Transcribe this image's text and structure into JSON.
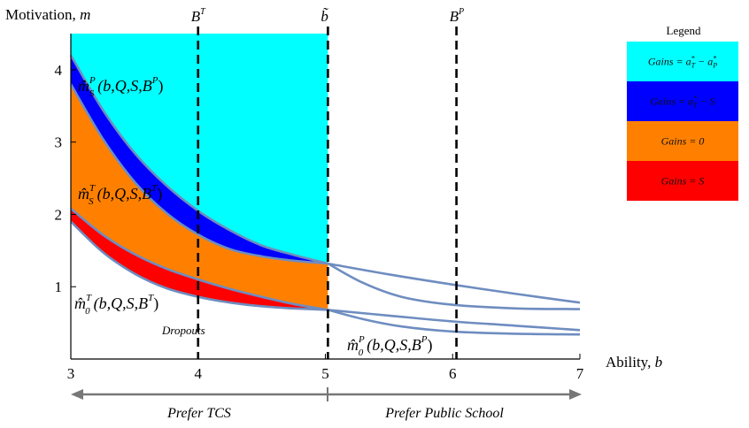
{
  "chart_data": {
    "type": "area",
    "title": "",
    "xlabel": "Ability,",
    "xlabel_var": "b",
    "ylabel": "Motivation,",
    "ylabel_var": "m",
    "xlim": [
      3,
      7
    ],
    "ylim": [
      0,
      4.5
    ],
    "xticks": [
      "3",
      "4",
      "5",
      "6",
      "7"
    ],
    "yticks": [
      "1",
      "2",
      "3",
      "4"
    ],
    "vlines": [
      {
        "x": 4.0,
        "label": "B",
        "sup": "T"
      },
      {
        "x": 5.02,
        "label": "b̃",
        "sup": ""
      },
      {
        "x": 6.03,
        "label": "B",
        "sup": "P"
      }
    ],
    "curves": [
      {
        "name": "mS_P_TCS",
        "x": [
          3,
          3.25,
          3.5,
          3.75,
          4,
          4.25,
          4.5,
          4.75,
          5.02
        ],
        "y": [
          4.2,
          3.45,
          2.85,
          2.4,
          2.05,
          1.78,
          1.57,
          1.44,
          1.32
        ]
      },
      {
        "name": "mS_T_TCS",
        "x": [
          3,
          3.25,
          3.5,
          3.75,
          4,
          4.25,
          4.5,
          4.75,
          5.02
        ],
        "y": [
          3.8,
          3.05,
          2.45,
          2.02,
          1.72,
          1.52,
          1.42,
          1.36,
          1.32
        ]
      },
      {
        "name": "mid_TCS",
        "x": [
          3,
          3.25,
          3.5,
          3.75,
          4,
          4.25,
          4.5,
          4.75,
          5.02
        ],
        "y": [
          2.08,
          1.72,
          1.45,
          1.25,
          1.1,
          0.97,
          0.86,
          0.76,
          0.68
        ]
      },
      {
        "name": "m0_T_TCS",
        "x": [
          3,
          3.25,
          3.5,
          3.75,
          4,
          4.25,
          4.5,
          4.75,
          5.02
        ],
        "y": [
          1.9,
          1.48,
          1.18,
          0.98,
          0.86,
          0.78,
          0.73,
          0.7,
          0.68
        ]
      },
      {
        "name": "pub_top",
        "x": [
          5.02,
          5.5,
          6,
          6.5,
          7
        ],
        "y": [
          1.32,
          1.17,
          1.03,
          0.9,
          0.78
        ]
      },
      {
        "name": "pub_mid",
        "x": [
          5.02,
          5.3,
          5.6,
          6,
          6.5,
          7
        ],
        "y": [
          1.32,
          1.05,
          0.86,
          0.75,
          0.7,
          0.69
        ]
      },
      {
        "name": "pub_low1",
        "x": [
          5.02,
          5.5,
          6,
          6.5,
          7
        ],
        "y": [
          0.68,
          0.6,
          0.52,
          0.46,
          0.4
        ]
      },
      {
        "name": "pub_low2",
        "x": [
          5.02,
          5.3,
          5.6,
          6,
          6.5,
          7
        ],
        "y": [
          0.68,
          0.55,
          0.45,
          0.38,
          0.35,
          0.34
        ]
      }
    ],
    "regions": [
      {
        "legend": "gains_a",
        "color": "#00FFFF",
        "upper_y": 4.5,
        "lower": "mS_P_TCS",
        "x_to": 5.02
      },
      {
        "legend": "gains_s1",
        "color": "#0000FF",
        "upper": "mS_P_TCS",
        "lower": "mS_T_TCS"
      },
      {
        "legend": "gains_0",
        "color": "#FF8000",
        "upper": "mS_T_TCS",
        "lower": "mid_TCS"
      },
      {
        "legend": "gains_s2",
        "color": "#FF0000",
        "upper": "mid_TCS",
        "lower": "m0_T_TCS"
      }
    ],
    "curve_color": "#6E8DC0",
    "annotations": [
      {
        "id": "ann_mSP",
        "text": "m̂",
        "sub": "S",
        "sup": "P",
        "args": "(b,Q,S,B",
        "args_sup": "P",
        "close": ")"
      },
      {
        "id": "ann_mST",
        "text": "m̂",
        "sub": "S",
        "sup": "T",
        "args": "(b,Q,S,B",
        "args_sup": "T",
        "close": ")"
      },
      {
        "id": "ann_m0T",
        "text": "m̂",
        "sub": "0",
        "sup": "T",
        "args": "(b,Q,S,B",
        "args_sup": "T",
        "close": ")"
      },
      {
        "id": "ann_m0P",
        "text": "m̂",
        "sub": "0",
        "sup": "P",
        "args": "(b,Q,S,B",
        "args_sup": "P",
        "close": ")"
      }
    ],
    "dropouts_label": "Dropouts",
    "prefer_left": "Prefer TCS",
    "prefer_right": "Prefer Public School",
    "legend": {
      "title": "Legend",
      "placement": "top-right",
      "items": [
        {
          "key": "gains_a",
          "text": "Gains = a",
          "sub1": "T",
          "sup1": "*",
          "mid": " − a",
          "sub2": "P",
          "sup2": "*",
          "color": "#00FFFF"
        },
        {
          "key": "gains_s1",
          "text": "Gains = a",
          "sub1": "T",
          "sup1": "*",
          "mid": " − S",
          "sub2": "",
          "sup2": "",
          "color": "#0000FF"
        },
        {
          "key": "gains_0",
          "text": "Gains = 0",
          "sub1": "",
          "sup1": "",
          "mid": "",
          "sub2": "",
          "sup2": "",
          "color": "#FF8000"
        },
        {
          "key": "gains_s2",
          "text": "Gains = S",
          "sub1": "",
          "sup1": "",
          "mid": "",
          "sub2": "",
          "sup2": "",
          "color": "#FF0000"
        }
      ]
    }
  }
}
